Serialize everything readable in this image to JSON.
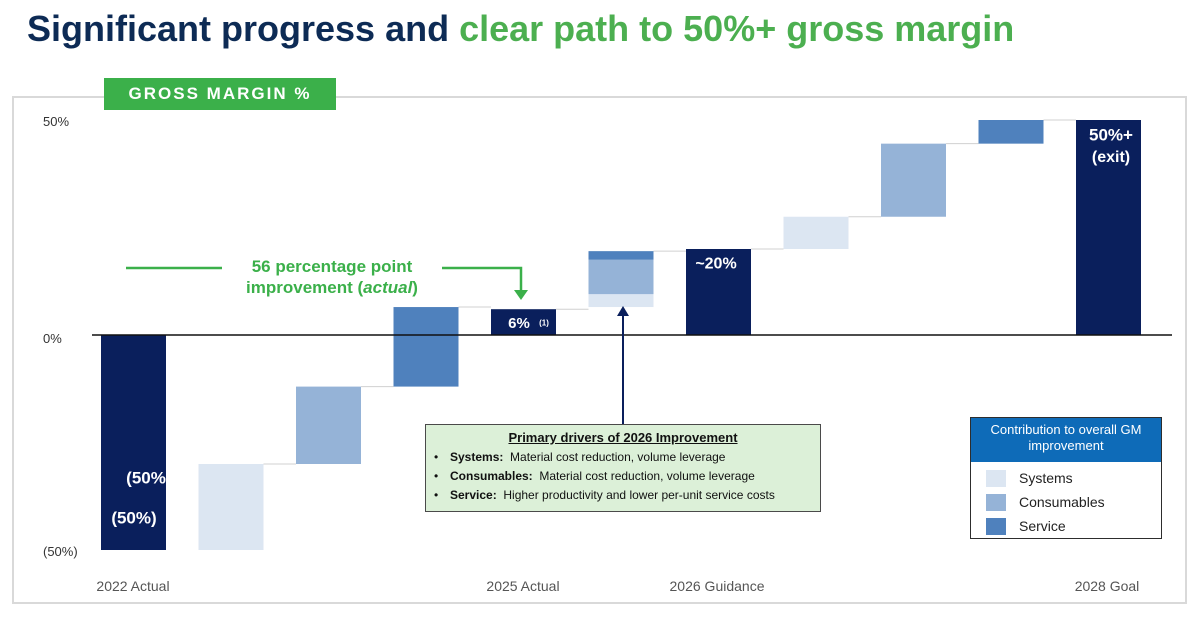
{
  "title": {
    "part1": "Significant progress and",
    "part2": "clear path to 50%+ gross margin"
  },
  "badge": "GROSS MARGIN %",
  "colors": {
    "navy": "#0a1f5c",
    "systems": "#dce6f2",
    "consumables": "#95b3d7",
    "service": "#4f81bd",
    "green": "#3bb04a"
  },
  "chart_data": {
    "type": "waterfall",
    "title": "GROSS MARGIN %",
    "ylim": [
      -50,
      50
    ],
    "y_ticks": [
      "50%",
      "0%",
      "(50%)"
    ],
    "x_labels": [
      "2022 Actual",
      "2025 Actual",
      "2026 Guidance",
      "2028 Goal"
    ],
    "bars": [
      {
        "kind": "total",
        "start": 0,
        "end": -50,
        "color": "navy",
        "label": "(50%)"
      },
      {
        "kind": "delta",
        "start": -50,
        "end": -30,
        "color": "systems"
      },
      {
        "kind": "delta",
        "start": -30,
        "end": -12,
        "color": "consumables"
      },
      {
        "kind": "delta",
        "start": -12,
        "end": 6.5,
        "color": "service"
      },
      {
        "kind": "total",
        "start": 0,
        "end": 6,
        "color": "navy",
        "label": "6%",
        "footnote": "(1)"
      },
      {
        "kind": "stack",
        "segments": [
          {
            "start": 6.5,
            "end": 9.5,
            "color": "systems"
          },
          {
            "start": 9.5,
            "end": 17.5,
            "color": "consumables"
          },
          {
            "start": 17.5,
            "end": 19.5,
            "color": "service"
          }
        ]
      },
      {
        "kind": "total",
        "start": 0,
        "end": 20,
        "color": "navy",
        "label": "~20%"
      },
      {
        "kind": "delta",
        "start": 20,
        "end": 27.5,
        "color": "systems"
      },
      {
        "kind": "delta",
        "start": 27.5,
        "end": 44.5,
        "color": "consumables"
      },
      {
        "kind": "delta",
        "start": 44.5,
        "end": 50,
        "color": "service"
      },
      {
        "kind": "total",
        "start": 0,
        "end": 50,
        "color": "navy",
        "label": "50%+",
        "label2": "(exit)"
      }
    ],
    "overlap_label": "(50%"
  },
  "callout": {
    "line1": "56 percentage point",
    "line2_pre": "improvement (",
    "line2_em": "actual",
    "line2_post": ")"
  },
  "drivers": {
    "heading": "Primary drivers of 2026 Improvement",
    "bullet": "•",
    "items": [
      {
        "name": "Systems:",
        "text": "Material cost reduction, volume leverage"
      },
      {
        "name": "Consumables:",
        "text": "Material cost reduction, volume leverage"
      },
      {
        "name": "Service:",
        "text": "Higher productivity and lower per-unit service costs"
      }
    ]
  },
  "legend": {
    "title": "Contribution to overall GM improvement",
    "items": [
      {
        "label": "Systems",
        "color": "#dce6f2"
      },
      {
        "label": "Consumables",
        "color": "#95b3d7"
      },
      {
        "label": "Service",
        "color": "#4f81bd"
      }
    ]
  }
}
